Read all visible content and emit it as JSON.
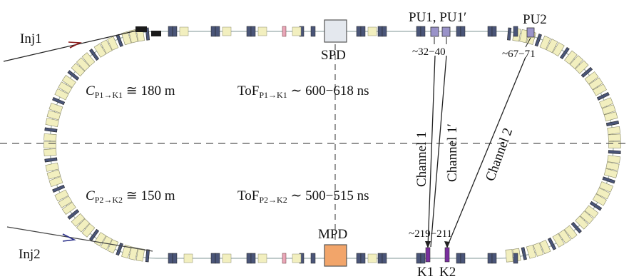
{
  "labels": {
    "inj1": "Inj1",
    "inj2": "Inj2",
    "spd": "SPD",
    "mpd": "MPD",
    "pu1": "PU1, PU1′",
    "pu2": "PU2",
    "range_pu1": "~32−40",
    "range_pu2": "~67−71",
    "range_k": "~219−211",
    "k1": "K1",
    "k2": "K2",
    "channel1": "Channel 1",
    "channel1p": "Channel 1′",
    "channel2": "Channel 2"
  },
  "equations": {
    "c1": {
      "main": "C",
      "sub": "P1→K1",
      "rest": " ≅ 180 m"
    },
    "c2": {
      "main": "C",
      "sub": "P2→K2",
      "rest": " ≅ 150 m"
    },
    "tof1": {
      "main": "ToF",
      "sub": "P1→K1",
      "rest": " ∼ 600−618 ns"
    },
    "tof2": {
      "main": "ToF",
      "sub": "P2→K2",
      "rest": " ∼ 500−515 ns"
    }
  },
  "colors": {
    "dipole": "#f2efbf",
    "quad": "#4a5578",
    "spd_box": "#e4e8ee",
    "mpd_box": "#f2a56a",
    "pickup": "#9a93c9",
    "kicker": "#7a2f9e",
    "inj1_arrow": "#8a1a1a",
    "inj2_arrow": "#2a2f8a"
  }
}
